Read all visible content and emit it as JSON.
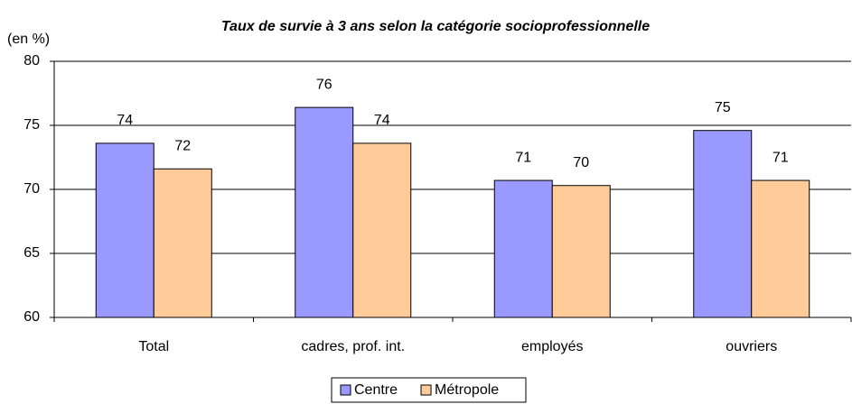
{
  "chart_data": {
    "type": "bar",
    "title": "Taux de survie à 3 ans selon la catégorie socioprofessionnelle",
    "y_label": "(en %)",
    "categories": [
      "Total",
      "cadres, prof. int.",
      "employés",
      "ouvriers"
    ],
    "series": [
      {
        "name": "Centre",
        "color": "#9999ff",
        "values": [
          73.6,
          76.4,
          70.7,
          74.6
        ],
        "value_labels": [
          "74",
          "76",
          "71",
          "75"
        ]
      },
      {
        "name": "Métropole",
        "color": "#ffcc99",
        "values": [
          71.6,
          73.6,
          70.3,
          70.7
        ],
        "value_labels": [
          "72",
          "74",
          "70",
          "71"
        ]
      }
    ],
    "ylim": [
      60,
      80
    ],
    "yticks": [
      60,
      65,
      70,
      75,
      80
    ],
    "grid": true,
    "legend": "bottom"
  }
}
